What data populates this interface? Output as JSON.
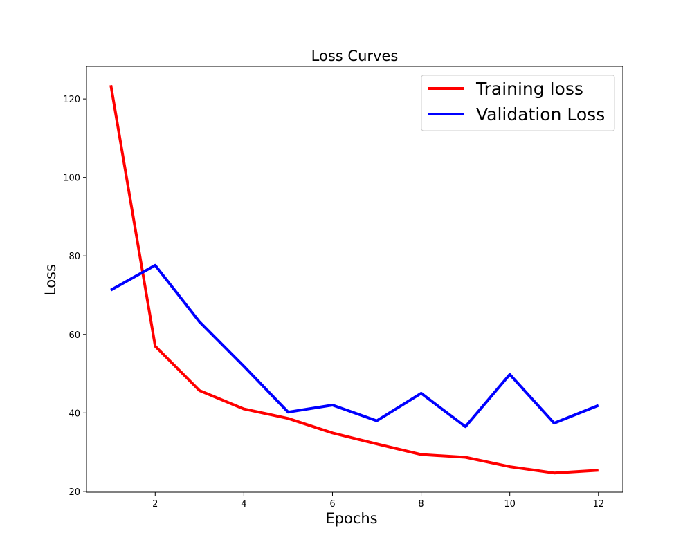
{
  "chart_data": {
    "type": "line",
    "title": "Loss Curves",
    "xlabel": "Epochs",
    "ylabel": "Loss",
    "x": [
      1,
      2,
      3,
      4,
      5,
      6,
      7,
      8,
      9,
      10,
      11,
      12
    ],
    "xlim": [
      0.45,
      12.55
    ],
    "ylim": [
      19.8,
      128.3
    ],
    "xticks": [
      2,
      4,
      6,
      8,
      10,
      12
    ],
    "yticks": [
      20,
      40,
      60,
      80,
      100,
      120
    ],
    "grid": false,
    "legend_position": "top-right",
    "series": [
      {
        "name": "Training loss",
        "color": "#ff0000",
        "values": [
          123.5,
          57.0,
          45.7,
          41.0,
          38.6,
          34.9,
          32.1,
          29.4,
          28.7,
          26.3,
          24.7,
          25.4
        ]
      },
      {
        "name": "Validation Loss",
        "color": "#0000ff",
        "values": [
          71.3,
          77.6,
          63.2,
          51.9,
          40.2,
          42.0,
          38.0,
          45.0,
          36.5,
          49.8,
          37.4,
          41.9
        ]
      }
    ]
  }
}
